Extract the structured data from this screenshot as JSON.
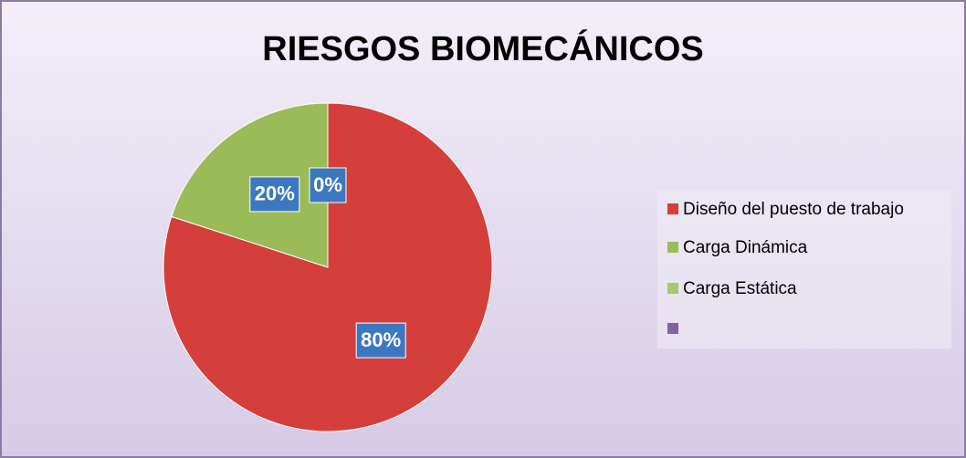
{
  "chart_data": {
    "type": "pie",
    "title": "RIESGOS BIOMECÁNICOS",
    "categories": [
      "Diseño del puesto de trabajo",
      "Carga Dinámica",
      "Carga Estática",
      null
    ],
    "values": [
      80,
      20,
      0,
      null
    ],
    "value_labels": [
      "80%",
      "20%",
      "0%",
      null
    ],
    "colors": [
      "#d43f3c",
      "#9bbb59",
      "#a8c66c",
      "#8064a2"
    ],
    "legend": "right"
  }
}
